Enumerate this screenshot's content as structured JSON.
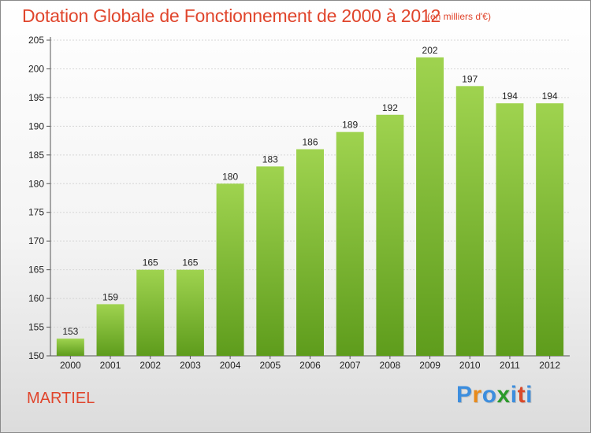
{
  "chart_data": {
    "type": "bar",
    "title": "Dotation Globale de Fonctionnement de 2000 à 2012",
    "subtitle": "(en milliers d'€)",
    "categories": [
      "2000",
      "2001",
      "2002",
      "2003",
      "2004",
      "2005",
      "2006",
      "2007",
      "2008",
      "2009",
      "2010",
      "2011",
      "2012"
    ],
    "values": [
      153,
      159,
      165,
      165,
      180,
      183,
      186,
      189,
      192,
      202,
      197,
      194,
      194
    ],
    "ylim": [
      150,
      205
    ],
    "yticks": [
      150,
      155,
      160,
      165,
      170,
      175,
      180,
      185,
      190,
      195,
      200,
      205
    ],
    "xlabel": "",
    "ylabel": "",
    "grid": true,
    "legend": "none",
    "bar_color": "#8cc63e",
    "bar_color_dark": "#5e9c1c"
  },
  "footer": {
    "commune": "MARTIEL",
    "logo_letters": [
      "P",
      "r",
      "o",
      "x",
      "i",
      "t",
      "i"
    ],
    "logo_colors": [
      "#3d8ede",
      "#e88a1a",
      "#3d8ede",
      "#2b9a2b",
      "#3d8ede",
      "#d94a2b",
      "#3d8ede"
    ]
  }
}
